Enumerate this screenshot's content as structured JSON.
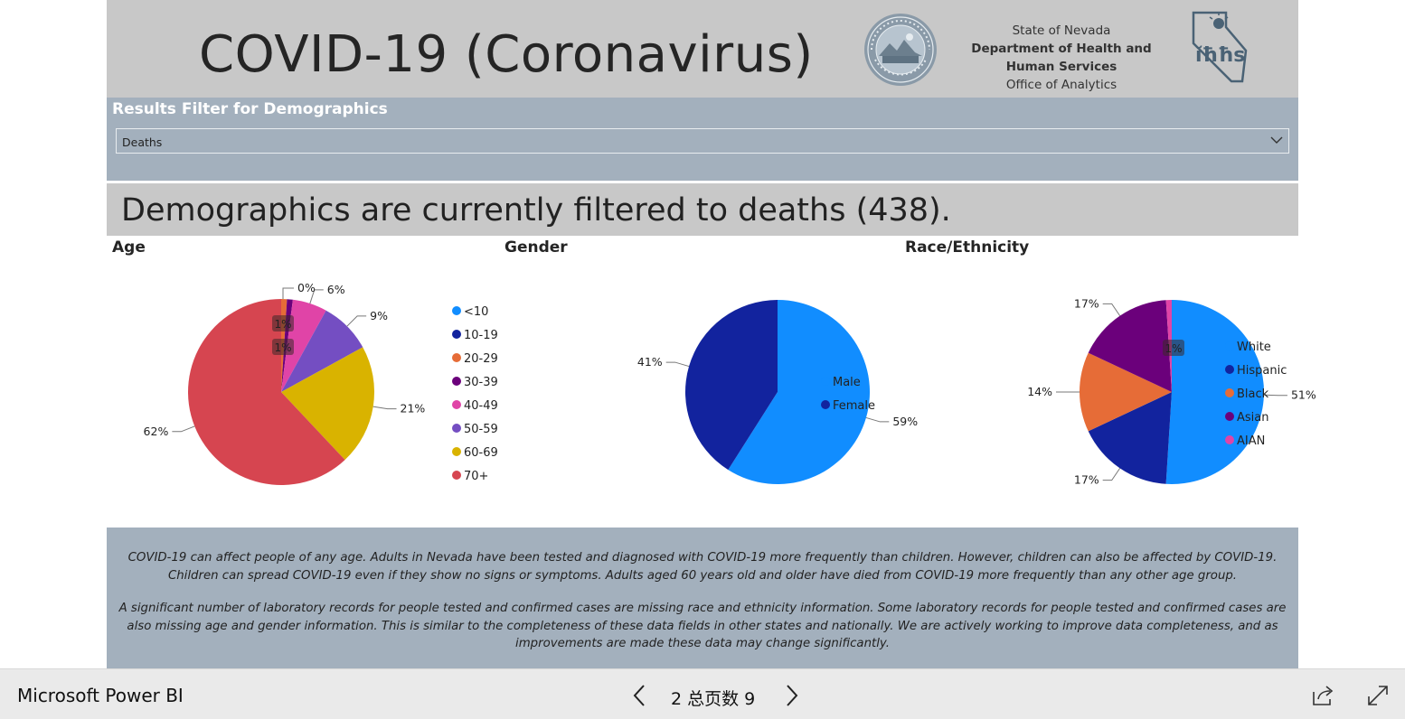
{
  "header": {
    "title": "COVID-19 (Coronavirus)",
    "agency_line1": "State of Nevada",
    "agency_line2": "Department of Health and",
    "agency_line3": "Human Services",
    "agency_line4": "Office of Analytics",
    "seal_icon": "nevada-state-seal",
    "logo_icon": "dhhs-logo"
  },
  "filter": {
    "label": "Results Filter for Demographics",
    "selected": "Deaths"
  },
  "banner": {
    "text": "Demographics are currently filtered to deaths (438)."
  },
  "chart_data": [
    {
      "type": "pie",
      "title": "Age",
      "categories": [
        "<10",
        "10-19",
        "20-29",
        "30-39",
        "40-49",
        "50-59",
        "60-69",
        "70+"
      ],
      "values": [
        0,
        0,
        1,
        1,
        6,
        9,
        21,
        62
      ],
      "labels": [
        "",
        "",
        "1%",
        "1%",
        "6%",
        "9%",
        "21%",
        "62%"
      ],
      "extra_labels": [
        "0%"
      ],
      "colors": [
        "#118dff",
        "#12239e",
        "#e66c37",
        "#6b007b",
        "#e044a7",
        "#744ec2",
        "#d9b300",
        "#d64550"
      ],
      "legend_position": "right"
    },
    {
      "type": "pie",
      "title": "Gender",
      "categories": [
        "Male",
        "Female"
      ],
      "values": [
        59,
        41
      ],
      "labels": [
        "59%",
        "41%"
      ],
      "colors": [
        "#118dff",
        "#12239e"
      ],
      "legend_position": "right"
    },
    {
      "type": "pie",
      "title": "Race/Ethnicity",
      "categories": [
        "White",
        "Hispanic",
        "Black",
        "Asian",
        "AIAN"
      ],
      "values": [
        51,
        17,
        14,
        17,
        1
      ],
      "labels": [
        "51%",
        "17%",
        "14%",
        "17%",
        "1%"
      ],
      "colors": [
        "#118dff",
        "#12239e",
        "#e66c37",
        "#6b007b",
        "#e044a7"
      ],
      "legend_position": "right"
    }
  ],
  "footer": {
    "p1": "COVID-19 can affect people of any age.  Adults in Nevada have been tested and diagnosed with COVID-19 more frequently than children.  However, children can also be affected by COVID-19. Children can spread COVID-19 even if they show no signs or symptoms.  Adults aged 60 years old and older have died from COVID-19 more frequently than any other age group.",
    "p2": "A significant number of laboratory records for people tested and confirmed cases are missing race and ethnicity information. Some laboratory records for people tested and confirmed cases are also missing age and gender information.  This is similar to the completeness of these data fields in other states and nationally.  We are actively working to improve data completeness, and as improvements are made these data may change significantly."
  },
  "bottombar": {
    "app_name": "Microsoft Power BI",
    "page_indicator": "2 总页数 9",
    "prev_icon": "chevron-left-icon",
    "next_icon": "chevron-right-icon",
    "share_icon": "share-icon",
    "fullscreen_icon": "fullscreen-icon"
  }
}
